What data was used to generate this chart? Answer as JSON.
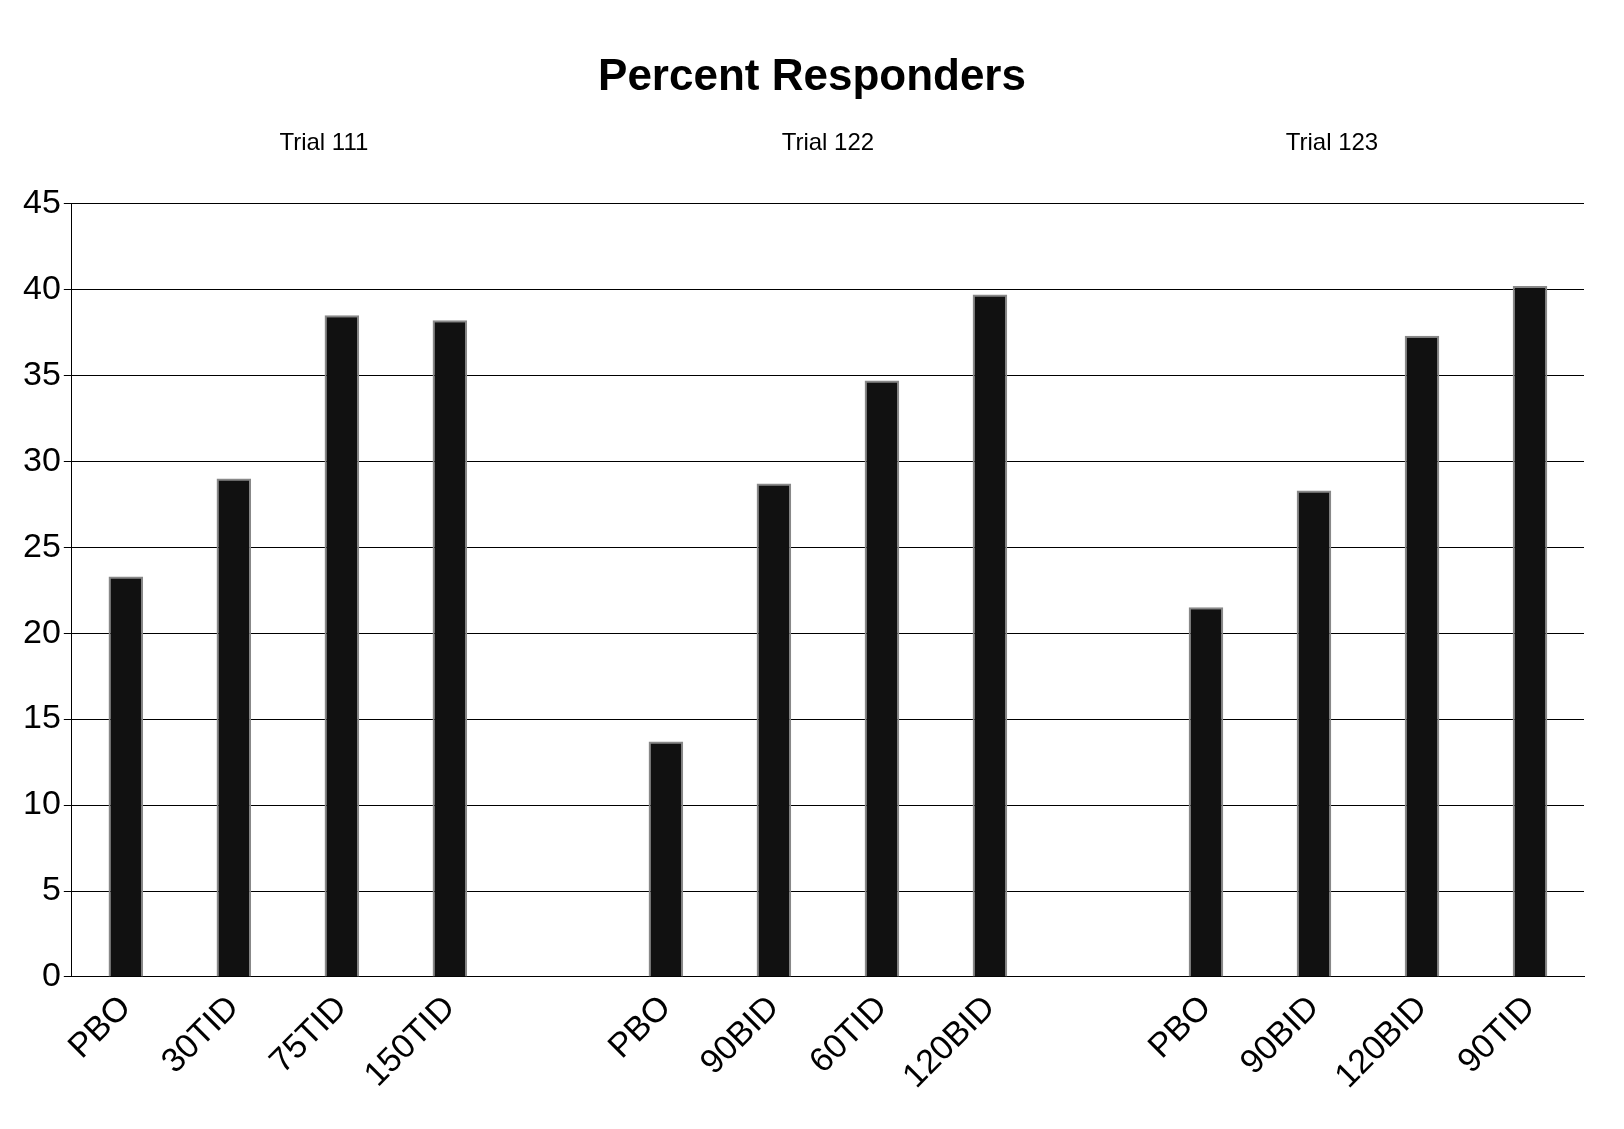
{
  "chart_data": {
    "type": "bar",
    "title": "Percent Responders",
    "annotations": [
      "Trial 111",
      "Trial 122",
      "Trial 123"
    ],
    "categories": [
      "PBO",
      "30TID",
      "75TID",
      "150TID",
      null,
      "PBO",
      "90BID",
      "60TID",
      "120BID",
      null,
      "PBO",
      "90BID",
      "120BID",
      "90TID"
    ],
    "values": [
      23.3,
      29,
      38.5,
      38.2,
      null,
      13.7,
      28.7,
      34.7,
      39.7,
      null,
      21.5,
      28.3,
      37.3,
      40.2
    ],
    "color": "#111111",
    "ylim": [
      0,
      45
    ],
    "yticks": [
      0,
      5,
      10,
      15,
      20,
      25,
      30,
      35,
      40,
      45
    ],
    "grid": "y",
    "legend": false
  }
}
